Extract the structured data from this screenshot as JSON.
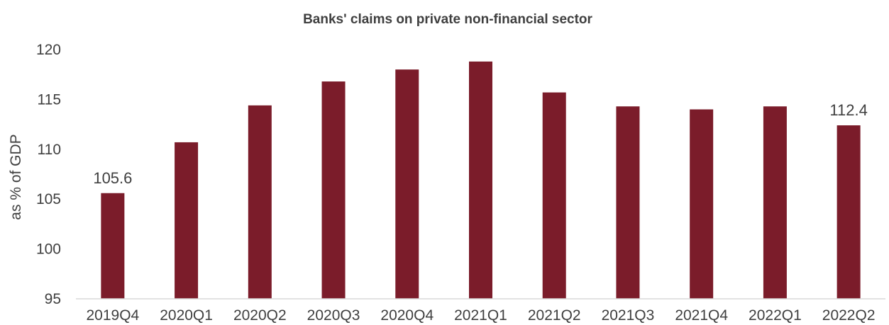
{
  "colors": {
    "bar": "#7b1c2a",
    "text": "#3f3f3f",
    "axis_line": "#d9d9d9"
  },
  "chart_data": {
    "type": "bar",
    "title": "Banks' claims on private non-financial sector",
    "xlabel": "",
    "ylabel": "as % of GDP",
    "ylim": [
      95,
      120
    ],
    "yticks": [
      95,
      100,
      105,
      110,
      115,
      120
    ],
    "grid": false,
    "categories": [
      "2019Q4",
      "2020Q1",
      "2020Q2",
      "2020Q3",
      "2020Q4",
      "2021Q1",
      "2021Q2",
      "2021Q3",
      "2021Q4",
      "2022Q1",
      "2022Q2"
    ],
    "values": [
      105.6,
      110.7,
      114.4,
      116.8,
      118.0,
      118.8,
      115.7,
      114.3,
      114.0,
      114.3,
      112.4
    ],
    "data_labels": [
      {
        "category": "2019Q4",
        "text": "105.6"
      },
      {
        "category": "2022Q2",
        "text": "112.4"
      }
    ]
  }
}
